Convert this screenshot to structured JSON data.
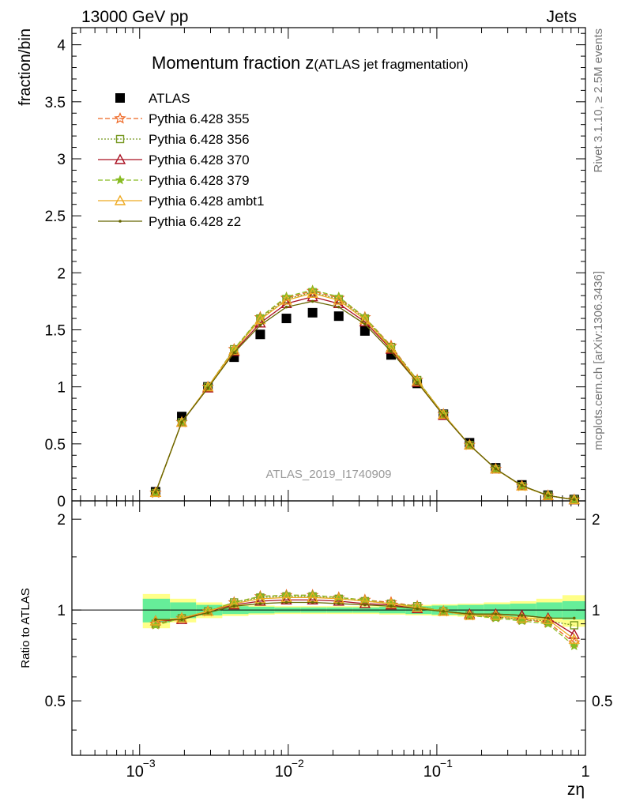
{
  "header": {
    "energy": "13000 GeV pp",
    "process": "Jets"
  },
  "side": {
    "rivet": "Rivet 3.1.10, ≥ 2.5M events",
    "mcplots": "mcplots.cern.ch [arXiv:1306.3436]"
  },
  "watermark": "ATLAS_2019_I1740909",
  "chart_data": [
    {
      "type": "scatter",
      "panel": "main",
      "title": "Momentum fraction z",
      "title_suffix": "(ATLAS jet fragmentation)",
      "ylabel": "fraction/bin",
      "xscale": "log",
      "xlim": [
        0.00035,
        1.0
      ],
      "ylim": [
        0,
        4.15
      ],
      "yticks": [
        0,
        0.5,
        1,
        1.5,
        2,
        2.5,
        3,
        3.5,
        4
      ],
      "ytick_labels": [
        "0",
        "0.5",
        "1",
        "1.5",
        "2",
        "2.5",
        "3",
        "3.5",
        "4"
      ],
      "x": [
        0.00128,
        0.00192,
        0.00288,
        0.00432,
        0.00648,
        0.00972,
        0.01458,
        0.02187,
        0.0328,
        0.0492,
        0.0738,
        0.1107,
        0.166,
        0.249,
        0.3735,
        0.56,
        0.84
      ],
      "legend_position": "top-left",
      "series": [
        {
          "name": "ATLAS",
          "color": "#000000",
          "marker": "square",
          "dash": "none",
          "values": [
            0.08,
            0.74,
            1.0,
            1.26,
            1.46,
            1.6,
            1.65,
            1.62,
            1.49,
            1.28,
            1.03,
            0.76,
            0.51,
            0.29,
            0.14,
            0.05,
            0.012
          ]
        },
        {
          "name": "Pythia 6.428 355",
          "color": "#ee6622",
          "marker": "star",
          "dash": "6,3",
          "values": [
            0.07,
            0.69,
            1.0,
            1.33,
            1.61,
            1.78,
            1.84,
            1.78,
            1.61,
            1.36,
            1.06,
            0.76,
            0.49,
            0.28,
            0.13,
            0.046,
            0.011
          ]
        },
        {
          "name": "Pythia 6.428 356",
          "color": "#779922",
          "marker": "square-open",
          "dash": "2,2",
          "values": [
            0.07,
            0.69,
            1.0,
            1.33,
            1.6,
            1.77,
            1.83,
            1.77,
            1.6,
            1.35,
            1.06,
            0.76,
            0.49,
            0.28,
            0.13,
            0.046,
            0.011
          ]
        },
        {
          "name": "Pythia 6.428 370",
          "color": "#aa1122",
          "marker": "triangle-open",
          "dash": "none",
          "values": [
            0.075,
            0.69,
            0.99,
            1.31,
            1.56,
            1.73,
            1.79,
            1.73,
            1.57,
            1.33,
            1.04,
            0.75,
            0.49,
            0.28,
            0.133,
            0.047,
            0.01
          ]
        },
        {
          "name": "Pythia 6.428 379",
          "color": "#88bb22",
          "marker": "star-small",
          "dash": "6,3",
          "values": [
            0.071,
            0.69,
            1.0,
            1.33,
            1.61,
            1.79,
            1.85,
            1.79,
            1.61,
            1.35,
            1.06,
            0.76,
            0.49,
            0.28,
            0.13,
            0.046,
            0.0095
          ]
        },
        {
          "name": "Pythia 6.428 ambt1",
          "color": "#eeaa22",
          "marker": "triangle-open",
          "dash": "none",
          "values": [
            0.074,
            0.69,
            1.0,
            1.32,
            1.59,
            1.76,
            1.82,
            1.76,
            1.59,
            1.34,
            1.05,
            0.76,
            0.49,
            0.28,
            0.13,
            0.047,
            0.011
          ]
        },
        {
          "name": "Pythia 6.428 z2",
          "color": "#666600",
          "marker": "dot",
          "dash": "none",
          "values": [
            0.075,
            0.69,
            0.99,
            1.3,
            1.54,
            1.7,
            1.75,
            1.7,
            1.55,
            1.31,
            1.04,
            0.75,
            0.49,
            0.28,
            0.134,
            0.047,
            0.0115
          ]
        }
      ]
    },
    {
      "type": "line",
      "panel": "ratio",
      "ylabel": "Ratio to ATLAS",
      "xlabel": "zη",
      "xscale": "log",
      "xlim": [
        0.00035,
        1.0
      ],
      "ylim": [
        0.33,
        2.3
      ],
      "yscale": "log",
      "yticks": [
        0.5,
        1,
        2
      ],
      "ytick_labels": [
        "0.5",
        "1",
        "2"
      ],
      "xticks": [
        0.001,
        0.01,
        0.1,
        1
      ],
      "xtick_labels": [
        [
          "10",
          "−3"
        ],
        [
          "10",
          "−2"
        ],
        [
          "10",
          "−1"
        ],
        [
          "1",
          ""
        ]
      ],
      "band_edges": [
        0.00105,
        0.0016,
        0.0024,
        0.0036,
        0.0054,
        0.0081,
        0.01215,
        0.0182,
        0.0273,
        0.041,
        0.0615,
        0.0922,
        0.138,
        0.207,
        0.311,
        0.467,
        0.7,
        1.0
      ],
      "band_inner": [
        0.09,
        0.06,
        0.04,
        0.03,
        0.025,
        0.02,
        0.02,
        0.02,
        0.02,
        0.025,
        0.03,
        0.035,
        0.04,
        0.045,
        0.05,
        0.06,
        0.07
      ],
      "band_outer": [
        0.13,
        0.09,
        0.06,
        0.045,
        0.035,
        0.03,
        0.03,
        0.03,
        0.03,
        0.035,
        0.04,
        0.045,
        0.05,
        0.06,
        0.07,
        0.09,
        0.12
      ],
      "band_inner_color": "#66ee99",
      "band_outer_color": "#ffff88",
      "x": [
        0.00128,
        0.00192,
        0.00288,
        0.00432,
        0.00648,
        0.00972,
        0.01458,
        0.02187,
        0.0328,
        0.0492,
        0.0738,
        0.1107,
        0.166,
        0.249,
        0.3735,
        0.56,
        0.84
      ],
      "series": [
        {
          "name": "Pythia 6.428 355",
          "color": "#ee6622",
          "marker": "star",
          "dash": "6,3",
          "values": [
            0.9,
            0.94,
            0.99,
            1.06,
            1.11,
            1.12,
            1.12,
            1.1,
            1.08,
            1.06,
            1.03,
            0.99,
            0.96,
            0.95,
            0.93,
            0.91,
            0.78
          ]
        },
        {
          "name": "Pythia 6.428 356",
          "color": "#779922",
          "marker": "square-open",
          "dash": "2,2",
          "values": [
            0.9,
            0.94,
            0.99,
            1.06,
            1.1,
            1.11,
            1.11,
            1.09,
            1.07,
            1.05,
            1.03,
            0.99,
            0.96,
            0.95,
            0.93,
            0.92,
            0.89
          ]
        },
        {
          "name": "Pythia 6.428 370",
          "color": "#aa1122",
          "marker": "triangle-open",
          "dash": "none",
          "values": [
            0.92,
            0.93,
            0.99,
            1.04,
            1.07,
            1.08,
            1.08,
            1.07,
            1.05,
            1.04,
            1.01,
            0.99,
            0.97,
            0.97,
            0.96,
            0.94,
            0.83
          ]
        },
        {
          "name": "Pythia 6.428 379",
          "color": "#88bb22",
          "marker": "star-small",
          "dash": "6,3",
          "values": [
            0.89,
            0.94,
            0.99,
            1.06,
            1.11,
            1.12,
            1.12,
            1.1,
            1.08,
            1.05,
            1.03,
            0.99,
            0.96,
            0.94,
            0.92,
            0.9,
            0.76
          ]
        },
        {
          "name": "Pythia 6.428 ambt1",
          "color": "#eeaa22",
          "marker": "triangle-open",
          "dash": "none",
          "values": [
            0.92,
            0.94,
            0.99,
            1.05,
            1.09,
            1.1,
            1.1,
            1.09,
            1.07,
            1.05,
            1.02,
            0.99,
            0.96,
            0.96,
            0.94,
            0.93,
            0.8
          ]
        },
        {
          "name": "Pythia 6.428 z2",
          "color": "#666600",
          "marker": "dot",
          "dash": "none",
          "values": [
            0.93,
            0.93,
            0.98,
            1.03,
            1.05,
            1.06,
            1.06,
            1.05,
            1.04,
            1.03,
            1.01,
            0.99,
            0.97,
            0.97,
            0.96,
            0.94,
            0.94
          ]
        }
      ]
    }
  ]
}
